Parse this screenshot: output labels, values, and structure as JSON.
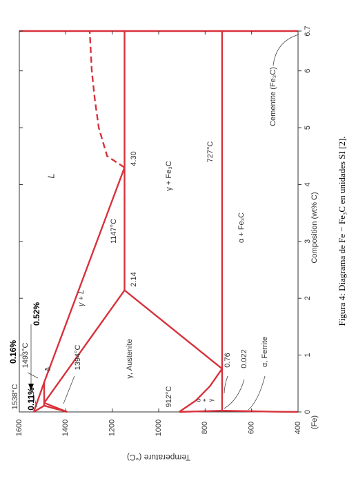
{
  "chart_data": {
    "type": "line",
    "xlabel": "Composition (wt% C)",
    "ylabel": "Temperature (°C)",
    "caption": "Figura 4: Diagrama de Fe − Fe₃C en unidades SI [2].",
    "xlim": [
      0,
      6.7
    ],
    "ylim": [
      400,
      1600
    ],
    "xticks": [
      0,
      1,
      2,
      3,
      4,
      5,
      6,
      6.7
    ],
    "yticks": [
      400,
      600,
      800,
      1000,
      1200,
      1400,
      1600
    ],
    "x_origin_label": "(Fe)",
    "color": "#d8323c",
    "series": [
      {
        "x": [
          0,
          0.52,
          4.3
        ],
        "values": [
          1538,
          1493,
          1147
        ]
      },
      {
        "x": [
          4.3,
          4.5,
          5,
          5.5,
          6,
          6.7
        ],
        "values": [
          1147,
          1222,
          1258,
          1275,
          1288,
          1297
        ],
        "dashed": true
      },
      {
        "x": [
          0.16,
          2.14
        ],
        "values": [
          1493,
          1147
        ]
      },
      {
        "x": [
          0,
          0.11
        ],
        "values": [
          1538,
          1493
        ]
      },
      {
        "x": [
          0.11,
          0.52
        ],
        "values": [
          1493,
          1493
        ]
      },
      {
        "x": [
          0,
          0.11
        ],
        "values": [
          1394,
          1493
        ]
      },
      {
        "x": [
          0,
          0.16
        ],
        "values": [
          1394,
          1493
        ]
      },
      {
        "x": [
          2.14,
          6.7
        ],
        "values": [
          1147,
          1147
        ]
      },
      {
        "x": [
          2.14,
          0.76
        ],
        "values": [
          1147,
          727
        ]
      },
      {
        "x": [
          0,
          0.2,
          0.45,
          0.76
        ],
        "values": [
          912,
          840,
          780,
          727
        ]
      },
      {
        "x": [
          0.022,
          6.7
        ],
        "values": [
          727,
          727
        ]
      },
      {
        "x": [
          0,
          0.022
        ],
        "values": [
          912,
          727
        ]
      },
      {
        "x": [
          0.022,
          0.012,
          0.004,
          0
        ],
        "values": [
          727,
          600,
          500,
          400
        ]
      },
      {
        "x": [
          6.7,
          6.7
        ],
        "values": [
          400,
          1600
        ]
      }
    ],
    "annotations": {
      "t1538": "1538°C",
      "t1493": "1493°C",
      "t1394": "1394°C",
      "t1147": "1147°C",
      "t912": "912°C",
      "t727": "727°C",
      "c016": "0.16%",
      "c052": "0.52%",
      "c011": "0.11%",
      "c430": "4.30",
      "c214": "2.14",
      "c076": "0.76",
      "c0022": "0.022",
      "L": "L",
      "gL": "γ + L",
      "aus": "γ, Austenite",
      "gFe": "γ + Fe₃C",
      "aFe": "α + Fe₃C",
      "cem": "Cementite (Fe₃C)",
      "fer": "α, Ferrite",
      "delta": "δ",
      "ag": [
        "α",
        "+",
        "γ"
      ]
    }
  }
}
